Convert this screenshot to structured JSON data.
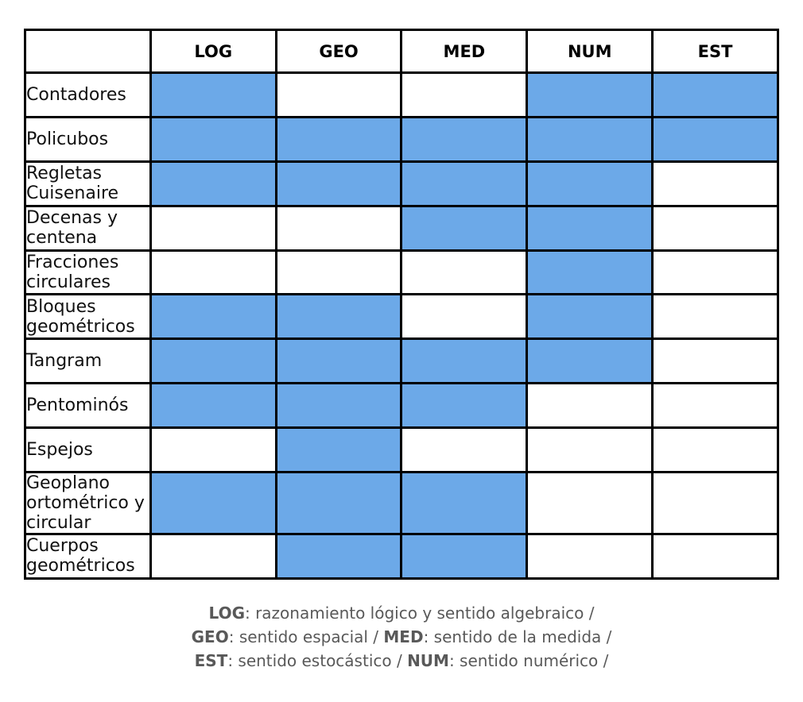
{
  "chart_data": {
    "type": "table",
    "columns": [
      "LOG",
      "GEO",
      "MED",
      "NUM",
      "EST"
    ],
    "rows": [
      {
        "label": "Contadores",
        "values": [
          1,
          0,
          0,
          1,
          1
        ]
      },
      {
        "label": "Policubos",
        "values": [
          1,
          1,
          1,
          1,
          1
        ]
      },
      {
        "label": "Regletas Cuisenaire",
        "values": [
          1,
          1,
          1,
          1,
          0
        ]
      },
      {
        "label": "Decenas y centena",
        "values": [
          0,
          0,
          1,
          1,
          0
        ]
      },
      {
        "label": "Fracciones circulares",
        "values": [
          0,
          0,
          0,
          1,
          0
        ]
      },
      {
        "label": "Bloques geométricos",
        "values": [
          1,
          1,
          0,
          1,
          0
        ]
      },
      {
        "label": "Tangram",
        "values": [
          1,
          1,
          1,
          1,
          0
        ]
      },
      {
        "label": "Pentominós",
        "values": [
          1,
          1,
          1,
          0,
          0
        ]
      },
      {
        "label": "Espejos",
        "values": [
          0,
          1,
          0,
          0,
          0
        ]
      },
      {
        "label": "Geoplano ortométrico y circular",
        "values": [
          1,
          1,
          1,
          0,
          0
        ]
      },
      {
        "label": "Cuerpos geométricos",
        "values": [
          0,
          1,
          1,
          0,
          0
        ]
      }
    ]
  },
  "legend": {
    "lines": [
      {
        "segments": [
          {
            "text": "LOG",
            "bold": true
          },
          {
            "text": ": razonamiento lógico y sentido algebraico /",
            "bold": false
          }
        ]
      },
      {
        "segments": [
          {
            "text": "GEO",
            "bold": true
          },
          {
            "text": ": sentido espacial / ",
            "bold": false
          },
          {
            "text": "MED",
            "bold": true
          },
          {
            "text": ": sentido de la medida /",
            "bold": false
          }
        ]
      },
      {
        "segments": [
          {
            "text": "EST",
            "bold": true
          },
          {
            "text": ": sentido estocástico / ",
            "bold": false
          },
          {
            "text": "NUM",
            "bold": true
          },
          {
            "text": ": sentido numérico /",
            "bold": false
          }
        ]
      }
    ]
  },
  "colors": {
    "cell_fill": "#6CA9E8",
    "grid_border": "#000000",
    "row_label_text": "#111111",
    "legend_text": "#595959",
    "background": "#ffffff"
  }
}
